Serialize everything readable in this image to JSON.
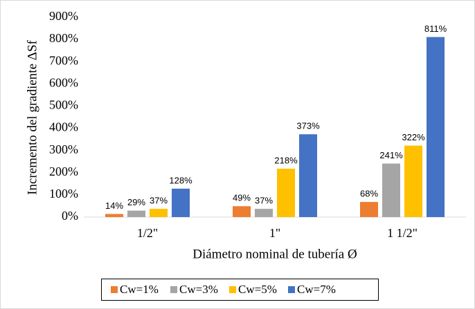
{
  "chart_data": {
    "type": "bar",
    "categories": [
      "1/2\"",
      "1\"",
      "1 1/2\""
    ],
    "series": [
      {
        "name": "Cw=1%",
        "color": "#ED7D31",
        "values": [
          14,
          49,
          68
        ],
        "value_labels": [
          "14%",
          "49%",
          "68%"
        ]
      },
      {
        "name": "Cw=3%",
        "color": "#A5A5A5",
        "values": [
          29,
          37,
          241
        ],
        "value_labels": [
          "29%",
          "37%",
          "241%"
        ]
      },
      {
        "name": "Cw=5%",
        "color": "#FFC000",
        "values": [
          37,
          218,
          322
        ],
        "value_labels": [
          "37%",
          "218%",
          "322%"
        ]
      },
      {
        "name": "Cw=7%",
        "color": "#4472C4",
        "values": [
          128,
          373,
          811
        ],
        "value_labels": [
          "128%",
          "373%",
          "811%"
        ]
      }
    ],
    "xlabel": "Diámetro nominal de tubería Ø",
    "ylabel": "Incremento del gradiente ΔSf",
    "ylim": [
      0,
      900
    ],
    "yticks": [
      {
        "value": 0,
        "label": "0%"
      },
      {
        "value": 100,
        "label": "100%"
      },
      {
        "value": 200,
        "label": "200%"
      },
      {
        "value": 300,
        "label": "300%"
      },
      {
        "value": 400,
        "label": "400%"
      },
      {
        "value": 500,
        "label": "500%"
      },
      {
        "value": 600,
        "label": "600%"
      },
      {
        "value": 700,
        "label": "700%"
      },
      {
        "value": 800,
        "label": "800%"
      },
      {
        "value": 900,
        "label": "900%"
      }
    ],
    "grid": false,
    "legend": "bottom"
  }
}
